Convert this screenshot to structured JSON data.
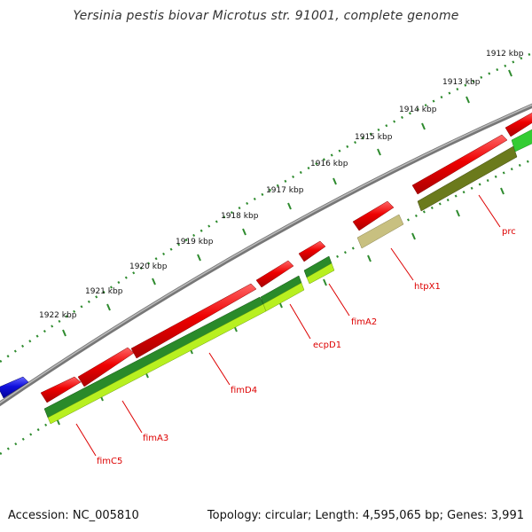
{
  "title": "Yersinia pestis biovar Microtus str. 91001, complete genome",
  "accession_text": "Accession: NC_005810",
  "summary_text": "Topology: circular; Length: 4,595,065 bp; Genes: 3,991",
  "scale_labels": [
    "1922 kbp",
    "1921 kbp",
    "1920 kbp",
    "1919 kbp",
    "1918 kbp",
    "1917 kbp",
    "1916 kbp",
    "1915 kbp",
    "1914 kbp",
    "1913 kbp",
    "1912 kbp"
  ],
  "gene_labels": [
    "fimC5",
    "fimA3",
    "fimD4",
    "ecpD1",
    "fimA2",
    "htpX1",
    "prc"
  ],
  "colors": {
    "backbone": "#808080",
    "forward_gene": "#ee0000",
    "blue_gene": "#1010dd",
    "reverse_dark_green": "#2a8a2a",
    "reverse_light_green": "#b8f020",
    "reverse_olive": "#6b7a1c",
    "reverse_khaki": "#c8c080",
    "reverse_bright_green": "#33cc33",
    "ruler_ticks": "#2e8b2e",
    "label_text": "#dd0000"
  }
}
